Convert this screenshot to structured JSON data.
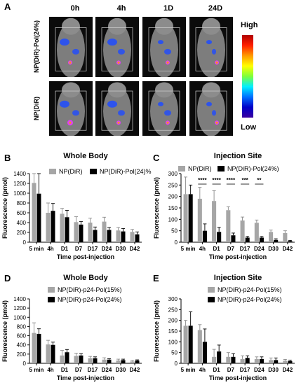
{
  "panel_A": {
    "letter": "A",
    "time_labels": [
      "0h",
      "4h",
      "1D",
      "24D"
    ],
    "row_labels": [
      "NP(DiR)-Pol(24%)",
      "NP(DiR)"
    ],
    "colorbar": {
      "high": "High",
      "low": "Low"
    },
    "colors": {
      "background": "#0b0b0b",
      "signal": "#1f4bff"
    }
  },
  "chart_data": [
    {
      "panel": "B",
      "type": "bar",
      "title": "Whole Body",
      "xlabel": "Time post-injection",
      "ylabel": "Fluorescence (pmol)",
      "categories": [
        "5 min",
        "4h",
        "D1",
        "D7",
        "D17",
        "D24",
        "D30",
        "D42"
      ],
      "ylim": [
        0,
        1400
      ],
      "yticks": [
        0,
        200,
        400,
        600,
        800,
        1000,
        1200,
        1400
      ],
      "legend_position": "top-right",
      "series": [
        {
          "name": "NP(DiR)",
          "color": "#a6a6a6",
          "values": [
            1210,
            600,
            580,
            410,
            400,
            420,
            240,
            210
          ],
          "errors": [
            230,
            200,
            110,
            110,
            90,
            90,
            60,
            50
          ]
        },
        {
          "name": "NP(DiR)-Pol(24)%",
          "color": "#000000",
          "values": [
            990,
            640,
            510,
            360,
            250,
            250,
            220,
            160
          ],
          "errors": [
            420,
            150,
            140,
            60,
            60,
            50,
            60,
            50
          ]
        }
      ],
      "significance": []
    },
    {
      "panel": "C",
      "type": "bar",
      "title": "Injection Site",
      "xlabel": "Time post-injection",
      "ylabel": "Fluorescence (pmol)",
      "categories": [
        "5 min",
        "4h",
        "D1",
        "D7",
        "D17",
        "D24",
        "D30",
        "D42"
      ],
      "ylim": [
        0,
        300
      ],
      "yticks": [
        0,
        50,
        100,
        150,
        200,
        250,
        300
      ],
      "legend_position": "top",
      "series": [
        {
          "name": "NP(DiR)",
          "color": "#a6a6a6",
          "values": [
            210,
            190,
            180,
            140,
            95,
            85,
            45,
            40
          ],
          "errors": [
            75,
            50,
            45,
            15,
            15,
            12,
            8,
            10
          ]
        },
        {
          "name": "NP(DiR)-Pol(24%)",
          "color": "#000000",
          "values": [
            210,
            50,
            45,
            30,
            20,
            20,
            10,
            5
          ],
          "errors": [
            40,
            30,
            20,
            10,
            5,
            5,
            5,
            3
          ]
        }
      ],
      "significance": [
        {
          "category": "4h",
          "stars": "****"
        },
        {
          "category": "D1",
          "stars": "****"
        },
        {
          "category": "D7",
          "stars": "****"
        },
        {
          "category": "D17",
          "stars": "***"
        },
        {
          "category": "D24",
          "stars": "**"
        }
      ]
    },
    {
      "panel": "D",
      "type": "bar",
      "title": "Whole Body",
      "xlabel": "Time post-injection",
      "ylabel": "Fluorescence (pmol)",
      "categories": [
        "5 min",
        "4h",
        "D1",
        "D7",
        "D17",
        "D24",
        "D30",
        "D42"
      ],
      "ylim": [
        0,
        1400
      ],
      "yticks": [
        0,
        200,
        400,
        600,
        800,
        1000,
        1200,
        1400
      ],
      "legend_position": "top",
      "series": [
        {
          "name": "NP(DiR)-p24-Pol(15%)",
          "color": "#a6a6a6",
          "values": [
            660,
            410,
            170,
            160,
            110,
            80,
            60,
            40
          ],
          "errors": [
            220,
            90,
            110,
            60,
            40,
            40,
            30,
            20
          ]
        },
        {
          "name": "NP(DiR)-p24-Pol(24%)",
          "color": "#000000",
          "values": [
            640,
            400,
            240,
            170,
            110,
            80,
            70,
            60
          ],
          "errors": [
            110,
            60,
            60,
            40,
            30,
            20,
            20,
            15
          ]
        }
      ],
      "significance": []
    },
    {
      "panel": "E",
      "type": "bar",
      "title": "Injection Site",
      "xlabel": "Time post-injection",
      "ylabel": "Fluorescence (pmol)",
      "categories": [
        "5 min",
        "4h",
        "D1",
        "D7",
        "D17",
        "D24",
        "D30",
        "D42"
      ],
      "ylim": [
        0,
        300
      ],
      "yticks": [
        0,
        50,
        100,
        150,
        200,
        250,
        300
      ],
      "legend_position": "top",
      "series": [
        {
          "name": "NP(DiR)-p24-Pol(15%)",
          "color": "#a6a6a6",
          "values": [
            175,
            155,
            30,
            30,
            20,
            20,
            15,
            12
          ],
          "errors": [
            25,
            25,
            35,
            20,
            15,
            10,
            10,
            6
          ]
        },
        {
          "name": "NP(DiR)-p24-Pol(24%)",
          "color": "#000000",
          "values": [
            175,
            100,
            55,
            30,
            25,
            20,
            15,
            10
          ],
          "errors": [
            65,
            60,
            30,
            15,
            10,
            10,
            10,
            5
          ]
        }
      ],
      "significance": []
    }
  ]
}
